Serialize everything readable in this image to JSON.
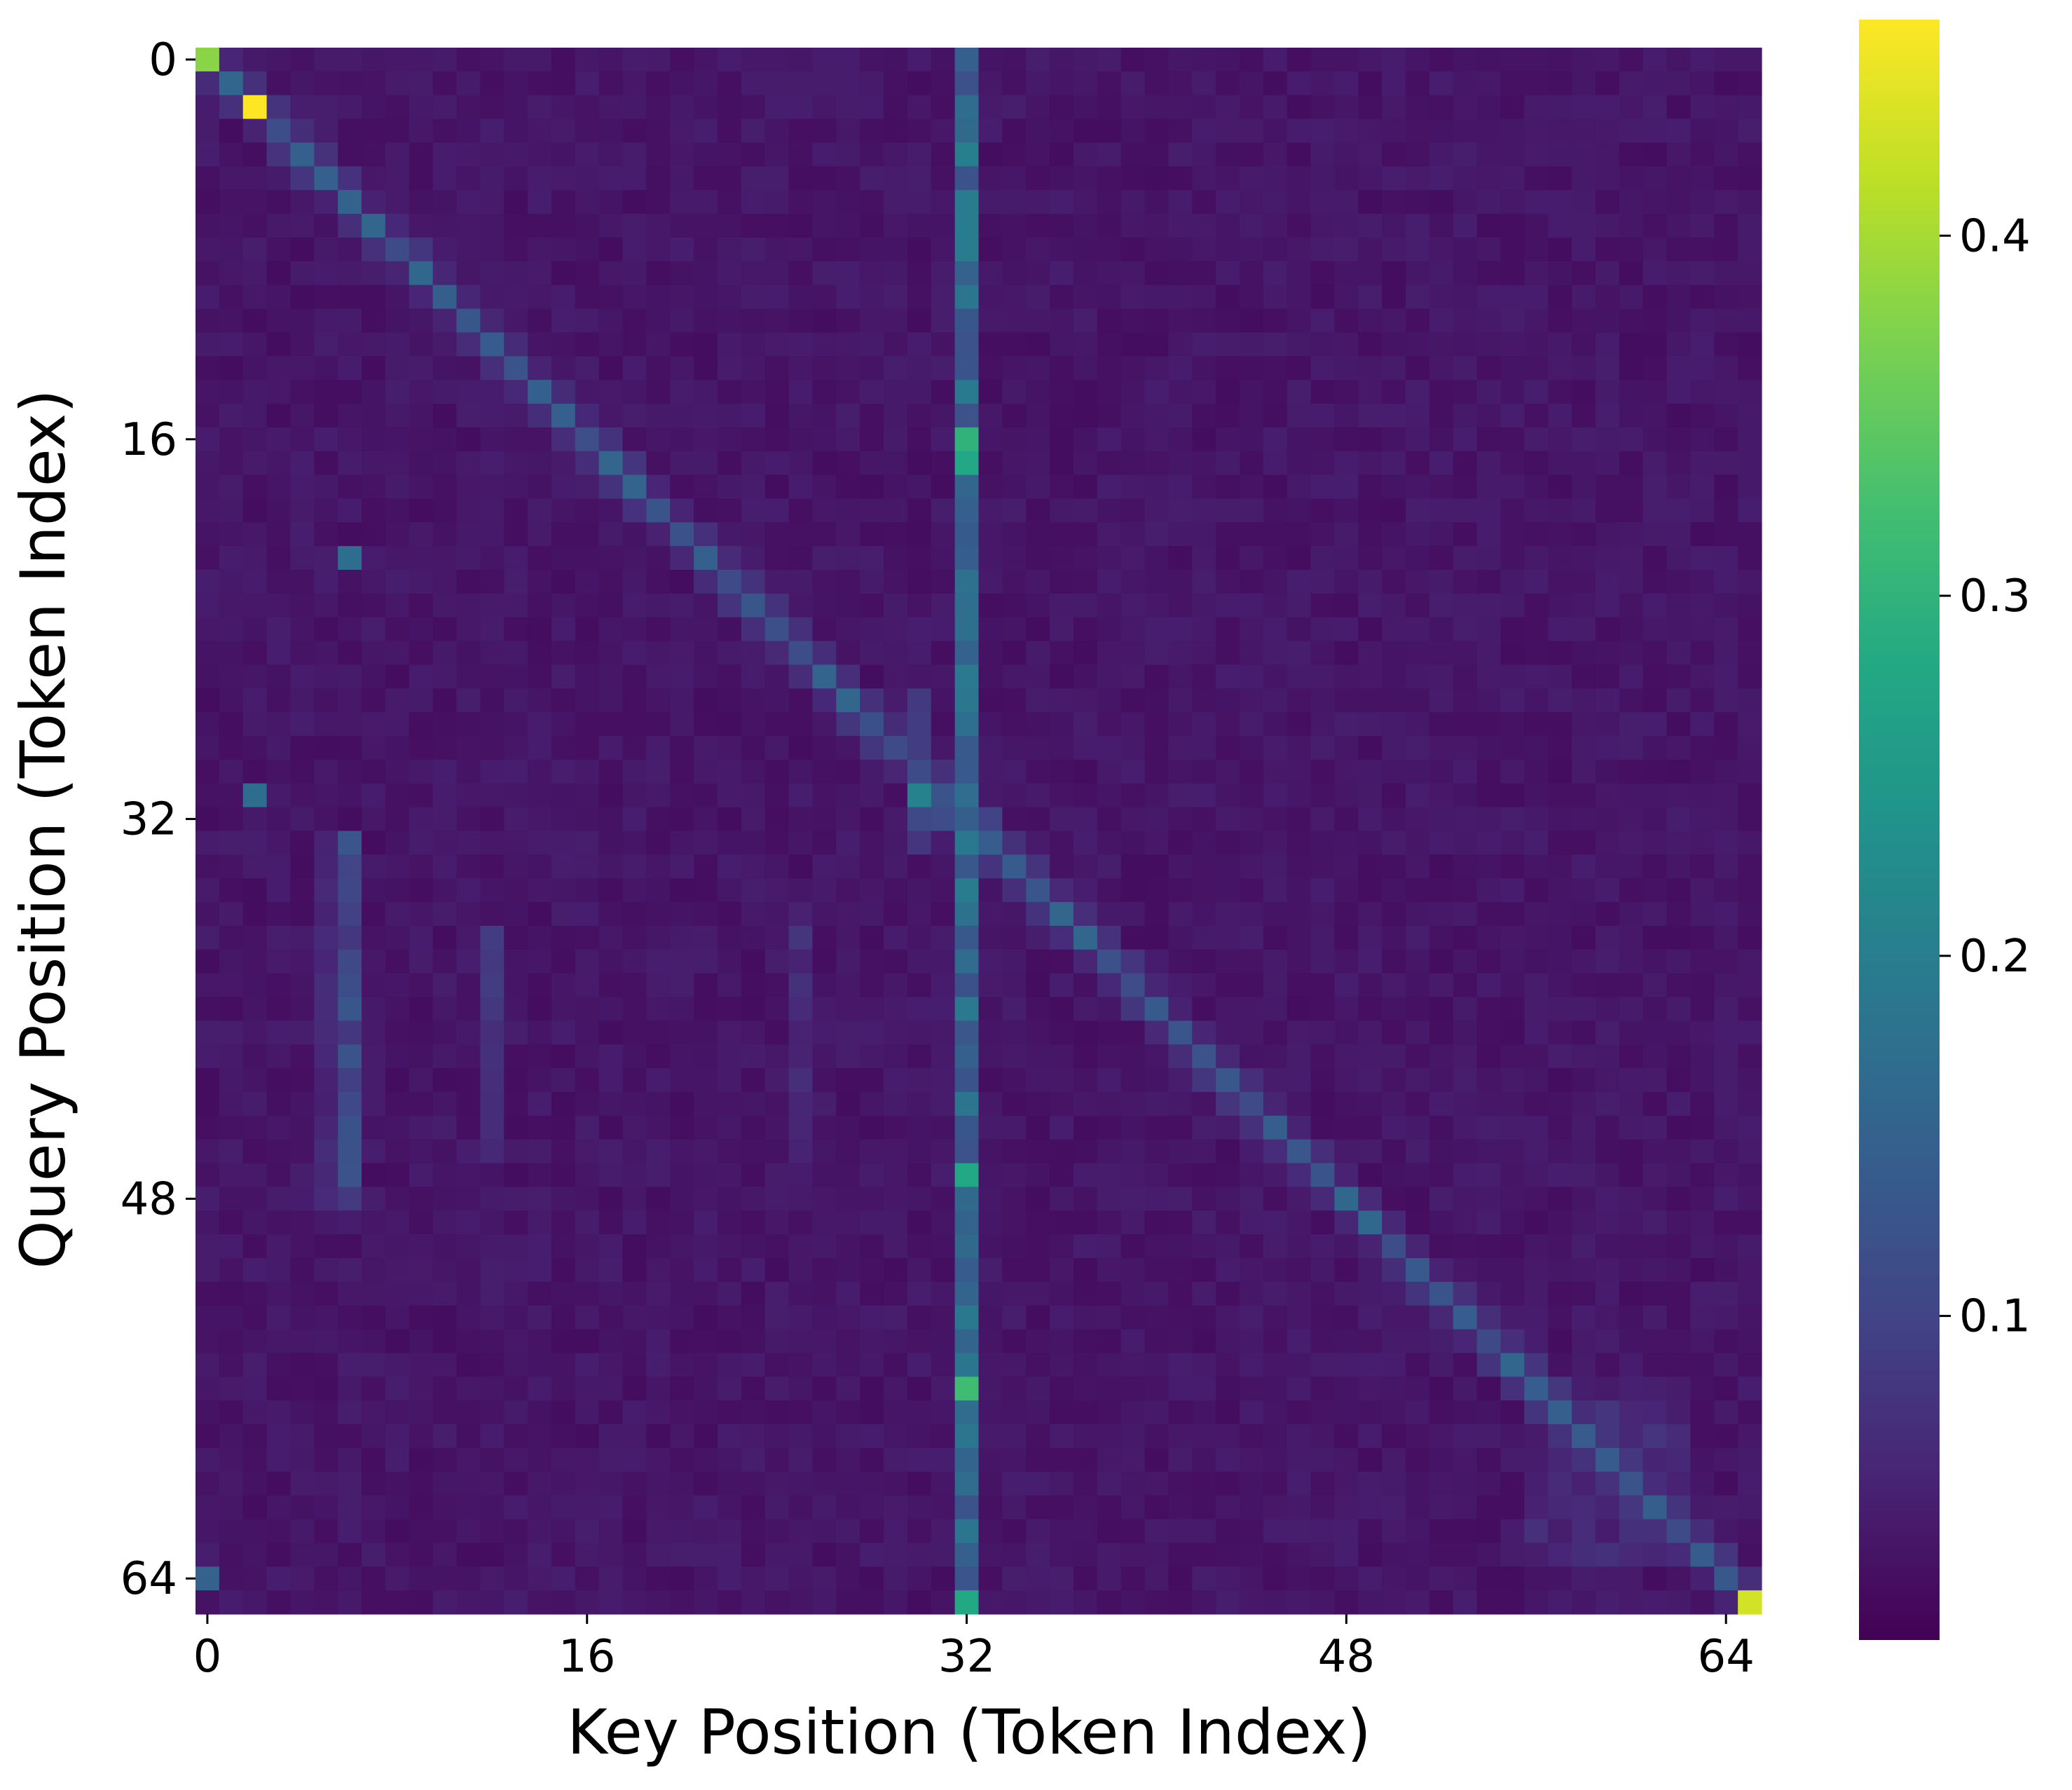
{
  "chart_data": {
    "type": "heatmap",
    "xlabel": "Key Position (Token Index)",
    "ylabel": "Query Position (Token Index)",
    "x_ticks": [
      "0",
      "16",
      "32",
      "48",
      "64"
    ],
    "y_ticks": [
      "0",
      "16",
      "32",
      "48",
      "64"
    ],
    "size": 66,
    "colormap": "viridis",
    "colorbar": {
      "range": [
        0.01,
        0.46
      ],
      "ticks": [
        "0.1",
        "0.2",
        "0.3",
        "0.4"
      ]
    },
    "background_value": 0.025,
    "highlights": [
      {
        "row": 0,
        "col": 0,
        "value": 0.38
      },
      {
        "row": 2,
        "col": 2,
        "value": 0.46
      },
      {
        "row": 65,
        "col": 65,
        "value": 0.43
      },
      {
        "row": 31,
        "col": 2,
        "value": 0.17
      },
      {
        "row": 31,
        "col": 30,
        "value": 0.21
      },
      {
        "row": 64,
        "col": 0,
        "value": 0.15
      },
      {
        "row": 21,
        "col": 6,
        "value": 0.17
      },
      {
        "row": 16,
        "col": 32,
        "value": 0.3
      },
      {
        "row": 17,
        "col": 32,
        "value": 0.28
      },
      {
        "row": 47,
        "col": 32,
        "value": 0.28
      },
      {
        "row": 56,
        "col": 32,
        "value": 0.32
      },
      {
        "row": 65,
        "col": 32,
        "value": 0.28
      }
    ],
    "patterns": [
      {
        "name": "diagonal",
        "value": 0.13
      },
      {
        "name": "column-32 sink",
        "value": 0.18
      },
      {
        "name": "column-6 stripe (rows 33-48)",
        "value": 0.1
      }
    ]
  }
}
